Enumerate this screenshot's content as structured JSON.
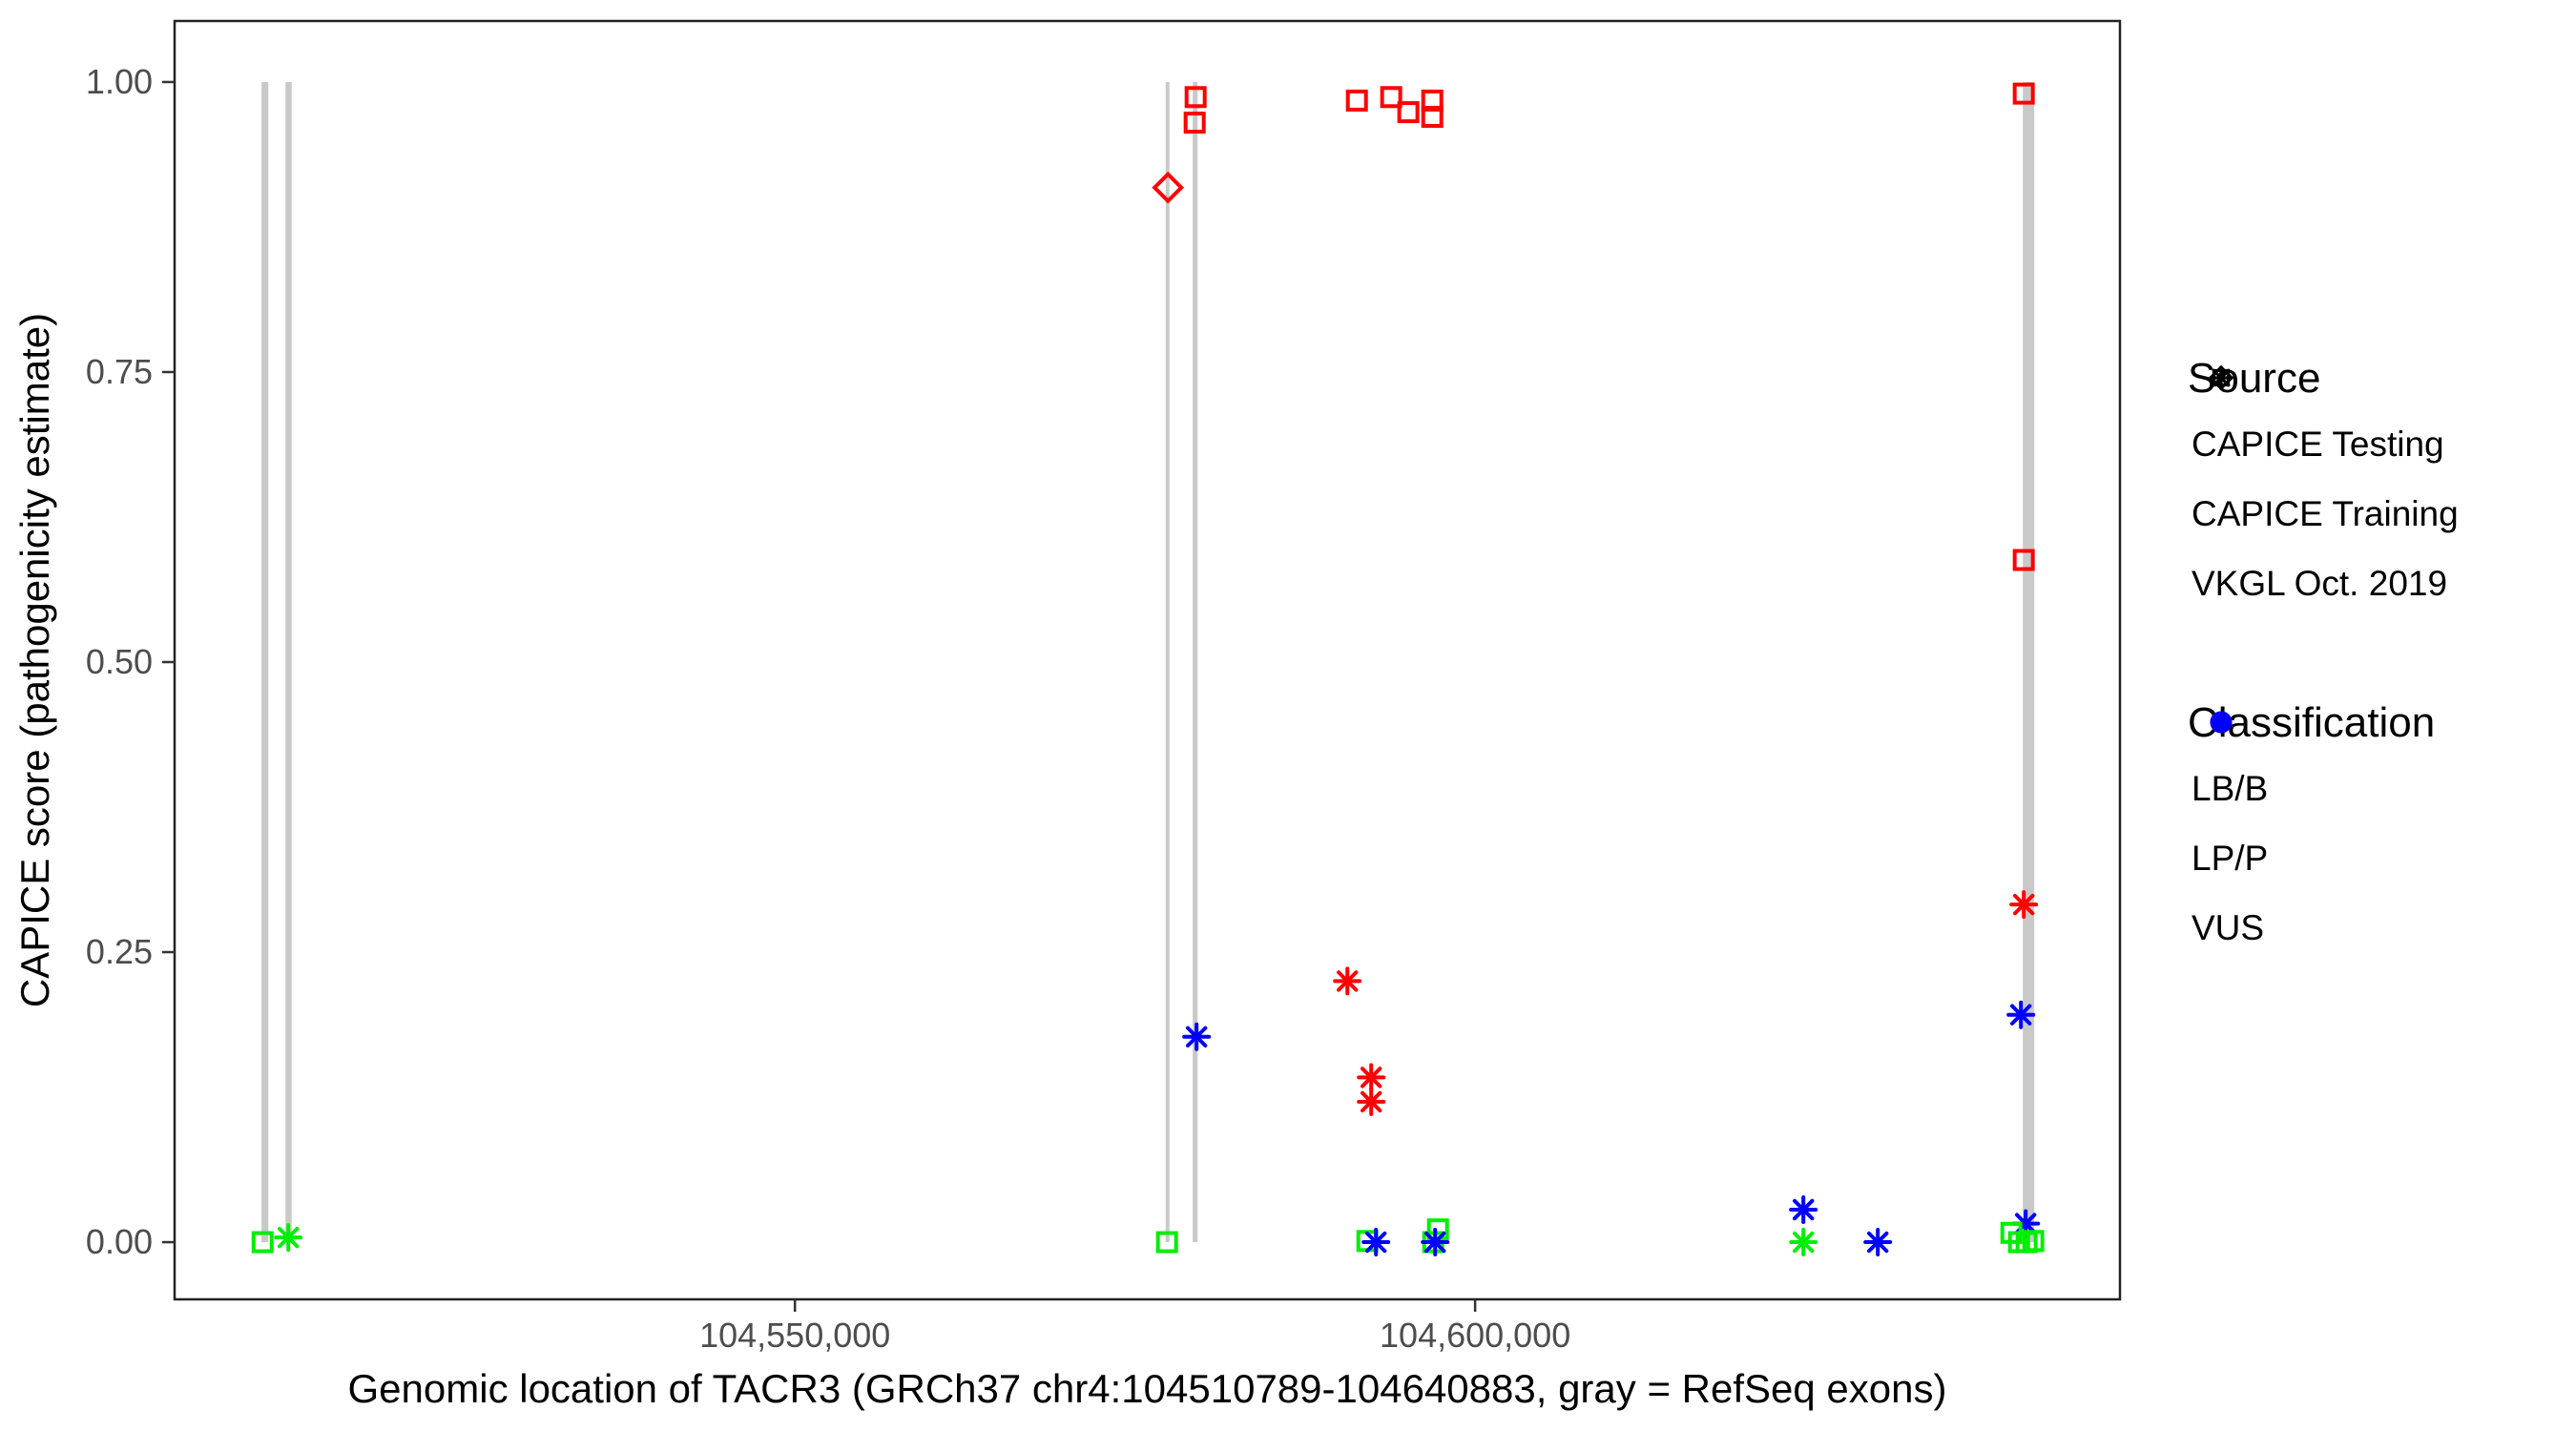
{
  "chart_data": {
    "type": "scatter",
    "title": "",
    "xlabel": "Genomic location of TACR3 (GRCh37 chr4:104510789-104640883, gray = RefSeq exons)",
    "ylabel": "CAPICE score (pathogenicity estimate)",
    "grid": "off",
    "x_domain": [
      104504400,
      104647400
    ],
    "y_domain": [
      -0.0493,
      1.0526
    ],
    "x_ticks": [
      {
        "value": 104550000,
        "label": "104,550,000"
      },
      {
        "value": 104600000,
        "label": "104,600,000"
      }
    ],
    "y_ticks": [
      {
        "value": 0.0,
        "label": "0.00"
      },
      {
        "value": 0.25,
        "label": "0.25"
      },
      {
        "value": 0.5,
        "label": "0.50"
      },
      {
        "value": 0.75,
        "label": "0.75"
      },
      {
        "value": 1.0,
        "label": "1.00"
      }
    ],
    "exon_score_span": [
      0,
      1.0
    ],
    "exons": [
      {
        "start": 104510790,
        "end": 104511290
      },
      {
        "start": 104512550,
        "end": 104513010
      },
      {
        "start": 104577250,
        "end": 104577530
      },
      {
        "start": 104579240,
        "end": 104579600
      },
      {
        "start": 104640260,
        "end": 104641100
      }
    ],
    "points": [
      {
        "pos": 104510870,
        "score": 0.0,
        "source": "training",
        "classification": "LB/B"
      },
      {
        "pos": 104512760,
        "score": 0.004,
        "source": "vkgl",
        "classification": "LB/B"
      },
      {
        "pos": 104577420,
        "score": 0.909,
        "source": "testing",
        "classification": "LP/P"
      },
      {
        "pos": 104577350,
        "score": 0.0,
        "source": "training",
        "classification": "LB/B"
      },
      {
        "pos": 104579455,
        "score": 0.987,
        "source": "training",
        "classification": "LP/P"
      },
      {
        "pos": 104579385,
        "score": 0.965,
        "source": "training",
        "classification": "LP/P"
      },
      {
        "pos": 104579525,
        "score": 0.177,
        "source": "vkgl",
        "classification": "VUS"
      },
      {
        "pos": 104591310,
        "score": 0.984,
        "source": "training",
        "classification": "LP/P"
      },
      {
        "pos": 104593830,
        "score": 0.987,
        "source": "training",
        "classification": "LP/P"
      },
      {
        "pos": 104595090,
        "score": 0.974,
        "source": "training",
        "classification": "LP/P"
      },
      {
        "pos": 104596850,
        "score": 0.984,
        "source": "training",
        "classification": "LP/P"
      },
      {
        "pos": 104596850,
        "score": 0.97,
        "source": "training",
        "classification": "LP/P"
      },
      {
        "pos": 104590610,
        "score": 0.225,
        "source": "vkgl",
        "classification": "LP/P"
      },
      {
        "pos": 104592360,
        "score": 0.142,
        "source": "vkgl",
        "classification": "LP/P"
      },
      {
        "pos": 104592360,
        "score": 0.121,
        "source": "vkgl",
        "classification": "LP/P"
      },
      {
        "pos": 104592080,
        "score": 0.001,
        "source": "training",
        "classification": "LB/B"
      },
      {
        "pos": 104592710,
        "score": 0.0,
        "source": "vkgl",
        "classification": "VUS"
      },
      {
        "pos": 104597270,
        "score": 0.011,
        "source": "training",
        "classification": "LB/B"
      },
      {
        "pos": 104596920,
        "score": 0.0,
        "source": "training",
        "classification": "LB/B"
      },
      {
        "pos": 104597060,
        "score": 0.0,
        "source": "vkgl",
        "classification": "VUS"
      },
      {
        "pos": 104624130,
        "score": 0.028,
        "source": "vkgl",
        "classification": "VUS"
      },
      {
        "pos": 104624130,
        "score": 0.0,
        "source": "vkgl",
        "classification": "LB/B"
      },
      {
        "pos": 104629600,
        "score": 0.0,
        "source": "vkgl",
        "classification": "VUS"
      },
      {
        "pos": 104640330,
        "score": 0.99,
        "source": "training",
        "classification": "LP/P"
      },
      {
        "pos": 104640330,
        "score": 0.588,
        "source": "training",
        "classification": "LP/P"
      },
      {
        "pos": 104640330,
        "score": 0.291,
        "source": "vkgl",
        "classification": "LP/P"
      },
      {
        "pos": 104640120,
        "score": 0.196,
        "source": "vkgl",
        "classification": "VUS"
      },
      {
        "pos": 104640470,
        "score": 0.016,
        "source": "vkgl",
        "classification": "VUS"
      },
      {
        "pos": 104639420,
        "score": 0.008,
        "source": "training",
        "classification": "LB/B"
      },
      {
        "pos": 104639980,
        "score": 0.0,
        "source": "training",
        "classification": "LB/B"
      },
      {
        "pos": 104640540,
        "score": 0.0,
        "source": "training",
        "classification": "LB/B"
      },
      {
        "pos": 104641030,
        "score": 0.001,
        "source": "training",
        "classification": "LB/B"
      }
    ]
  },
  "legend": {
    "source": {
      "title": "Source",
      "items": [
        {
          "symbol": "diamond",
          "label": "CAPICE Testing"
        },
        {
          "symbol": "square",
          "label": "CAPICE Training"
        },
        {
          "symbol": "asterisk",
          "label": "VKGL Oct. 2019"
        }
      ]
    },
    "classification": {
      "title": "Classification",
      "items": [
        {
          "label": "LB/B",
          "color": "#00EE00"
        },
        {
          "label": "LP/P",
          "color": "#FF0000"
        },
        {
          "label": "VUS",
          "color": "#0000FF"
        }
      ]
    }
  },
  "colors": {
    "exon": "#C9C9C9",
    "panel_border": "#222222",
    "tick_mark": "#333333",
    "tick_label": "#4D4D4D",
    "LB/B": "#00EE00",
    "LP/P": "#FF0000",
    "VUS": "#0000FF"
  }
}
